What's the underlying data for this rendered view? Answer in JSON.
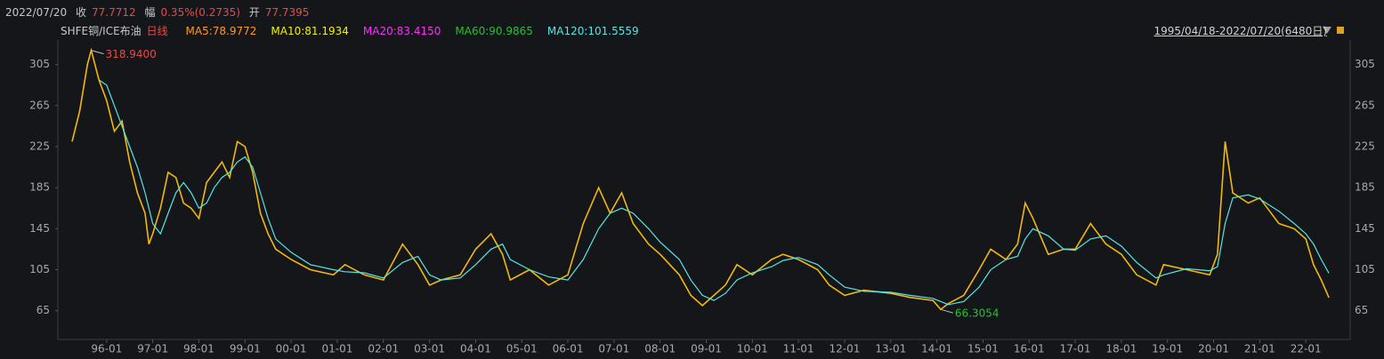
{
  "header": {
    "date": "2022/07/20",
    "close_label": "收",
    "close": "77.7712",
    "change_label": "幅",
    "change": "0.35%(0.2735)",
    "open_label": "开",
    "open": "77.7395",
    "symbol": "SHFE铜/ICE布油",
    "period": "日线",
    "indicators": [
      {
        "text": "MA5:78.9772",
        "color": "#ff9a1f"
      },
      {
        "text": "MA10:81.1934",
        "color": "#f2f200"
      },
      {
        "text": "MA20:83.4150",
        "color": "#ff2cff"
      },
      {
        "text": "MA60:90.9865",
        "color": "#22c32e"
      },
      {
        "text": "MA120:101.5559",
        "color": "#55e6e6"
      }
    ],
    "range": "1995/04/18-2022/07/20(6480日)"
  },
  "chart_data": {
    "type": "line",
    "x": [
      "1995-04",
      "1995-06",
      "1995-08",
      "1995-09",
      "1995-11",
      "1996-01",
      "1996-03",
      "1996-05",
      "1996-07",
      "1996-09",
      "1996-11",
      "1996-12",
      "1997-01",
      "1997-03",
      "1997-05",
      "1997-07",
      "1997-09",
      "1997-11",
      "1998-01",
      "1998-03",
      "1998-05",
      "1998-07",
      "1998-09",
      "1998-11",
      "1999-01",
      "1999-03",
      "1999-05",
      "1999-07",
      "1999-09",
      "2000-01",
      "2000-06",
      "2000-12",
      "2001-03",
      "2001-08",
      "2002-01",
      "2002-06",
      "2002-10",
      "2003-01",
      "2003-04",
      "2003-09",
      "2004-01",
      "2004-05",
      "2004-08",
      "2004-10",
      "2005-03",
      "2005-08",
      "2006-01",
      "2006-05",
      "2006-09",
      "2006-12",
      "2007-03",
      "2007-06",
      "2007-10",
      "2008-01",
      "2008-06",
      "2008-09",
      "2008-12",
      "2009-03",
      "2009-06",
      "2009-09",
      "2010-01",
      "2010-06",
      "2010-09",
      "2011-01",
      "2011-06",
      "2011-09",
      "2012-01",
      "2012-06",
      "2013-01",
      "2013-06",
      "2013-12",
      "2014-02",
      "2014-04",
      "2014-08",
      "2014-12",
      "2015-03",
      "2015-07",
      "2015-10",
      "2015-12",
      "2016-02",
      "2016-06",
      "2016-10",
      "2017-01",
      "2017-05",
      "2017-09",
      "2018-01",
      "2018-05",
      "2018-10",
      "2018-12",
      "2019-06",
      "2019-12",
      "2020-02",
      "2020-04",
      "2020-06",
      "2020-10",
      "2021-01",
      "2021-06",
      "2021-10",
      "2022-01",
      "2022-03",
      "2022-05",
      "2022-07"
    ],
    "series": [
      {
        "name": "SHFE铜/ICE布油",
        "color": "#f0b90b",
        "values": [
          230,
          260,
          305,
          318.94,
          290,
          270,
          240,
          250,
          210,
          180,
          160,
          130,
          140,
          165,
          200,
          195,
          170,
          165,
          155,
          190,
          200,
          210,
          195,
          230,
          225,
          200,
          160,
          140,
          125,
          115,
          105,
          100,
          110,
          100,
          95,
          130,
          110,
          90,
          95,
          100,
          125,
          140,
          120,
          95,
          105,
          90,
          100,
          150,
          185,
          160,
          180,
          150,
          130,
          120,
          100,
          80,
          70,
          80,
          90,
          110,
          100,
          115,
          120,
          115,
          105,
          90,
          80,
          85,
          82,
          78,
          75,
          66.3054,
          72,
          80,
          105,
          125,
          115,
          130,
          170,
          155,
          120,
          125,
          125,
          150,
          130,
          120,
          100,
          90,
          110,
          105,
          100,
          120,
          230,
          180,
          170,
          175,
          150,
          145,
          135,
          110,
          95,
          77.7712
        ]
      },
      {
        "name": "MA120",
        "color": "#55e6e6",
        "values": [
          null,
          null,
          null,
          null,
          290,
          285,
          265,
          245,
          225,
          205,
          180,
          165,
          150,
          140,
          160,
          180,
          190,
          180,
          165,
          170,
          185,
          195,
          200,
          210,
          215,
          205,
          180,
          155,
          135,
          122,
          110,
          105,
          103,
          102,
          97,
          112,
          118,
          100,
          95,
          97,
          110,
          125,
          130,
          115,
          105,
          98,
          95,
          115,
          145,
          160,
          165,
          160,
          145,
          132,
          115,
          95,
          80,
          75,
          82,
          95,
          102,
          108,
          114,
          117,
          110,
          100,
          88,
          84,
          83,
          80,
          77,
          74,
          71,
          74,
          88,
          105,
          115,
          118,
          135,
          145,
          138,
          125,
          124,
          135,
          138,
          128,
          112,
          97,
          100,
          106,
          104,
          108,
          150,
          175,
          178,
          174,
          162,
          150,
          140,
          130,
          115,
          101.5559
        ]
      }
    ],
    "annotations": [
      {
        "text": "318.9400",
        "x": "1995-09",
        "y": 318.94,
        "color": "#e84a4a"
      },
      {
        "text": "66.3054",
        "x": "2014-02",
        "y": 66.3054,
        "color": "#22c32e"
      }
    ],
    "xlim": [
      "1995-01",
      "2023-01"
    ],
    "xticks": [
      {
        "value": "1996-01",
        "label": "96-01"
      },
      {
        "value": "1997-01",
        "label": "97-01"
      },
      {
        "value": "1998-01",
        "label": "98-01"
      },
      {
        "value": "1999-01",
        "label": "99-01"
      },
      {
        "value": "2000-01",
        "label": "00-01"
      },
      {
        "value": "2001-01",
        "label": "01-01"
      },
      {
        "value": "2002-01",
        "label": "02-01"
      },
      {
        "value": "2003-01",
        "label": "03-01"
      },
      {
        "value": "2004-01",
        "label": "04-01"
      },
      {
        "value": "2005-01",
        "label": "05-01"
      },
      {
        "value": "2006-01",
        "label": "06-01"
      },
      {
        "value": "2007-01",
        "label": "07-01"
      },
      {
        "value": "2008-01",
        "label": "08-01"
      },
      {
        "value": "2009-01",
        "label": "09-01"
      },
      {
        "value": "2010-01",
        "label": "10-01"
      },
      {
        "value": "2011-01",
        "label": "11-01"
      },
      {
        "value": "2012-01",
        "label": "12-01"
      },
      {
        "value": "2013-01",
        "label": "13-01"
      },
      {
        "value": "2014-01",
        "label": "14-01"
      },
      {
        "value": "2015-01",
        "label": "15-01"
      },
      {
        "value": "2016-01",
        "label": "16-01"
      },
      {
        "value": "2017-01",
        "label": "17-01"
      },
      {
        "value": "2018-01",
        "label": "18-01"
      },
      {
        "value": "2019-01",
        "label": "19-01"
      },
      {
        "value": "2020-01",
        "label": "20-01"
      },
      {
        "value": "2021-01",
        "label": "21-01"
      },
      {
        "value": "2022-01",
        "label": "22-01"
      }
    ],
    "ylim": [
      37,
      329
    ],
    "yticks": [
      65,
      105,
      145,
      185,
      225,
      265,
      305
    ]
  }
}
